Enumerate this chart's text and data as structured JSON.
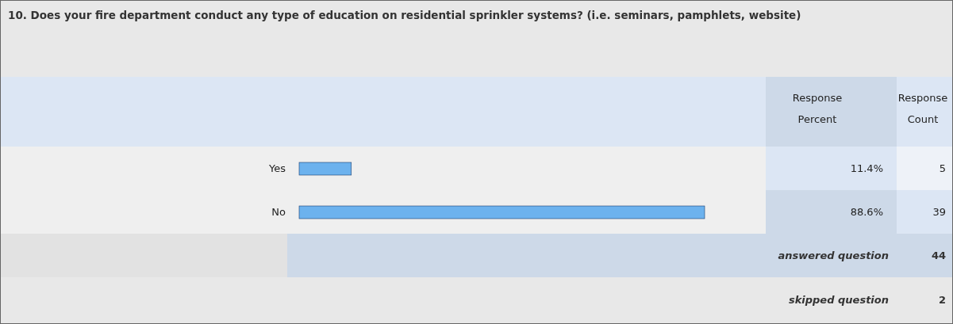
{
  "chart_data": {
    "type": "bar",
    "orientation": "horizontal",
    "title": "10. Does your fire department conduct any type of education on residential sprinkler systems? (i.e. seminars, pamphlets, website)",
    "categories": [
      "Yes",
      "No"
    ],
    "values": [
      11.4,
      88.6
    ],
    "value_labels": [
      "11.4%",
      "88.6%"
    ],
    "color": "#6cb2ee",
    "annotations": [
      "Response Percent",
      "Response Count",
      "5",
      "39",
      "answered question",
      "44",
      "skipped question",
      "2"
    ]
  }
}
